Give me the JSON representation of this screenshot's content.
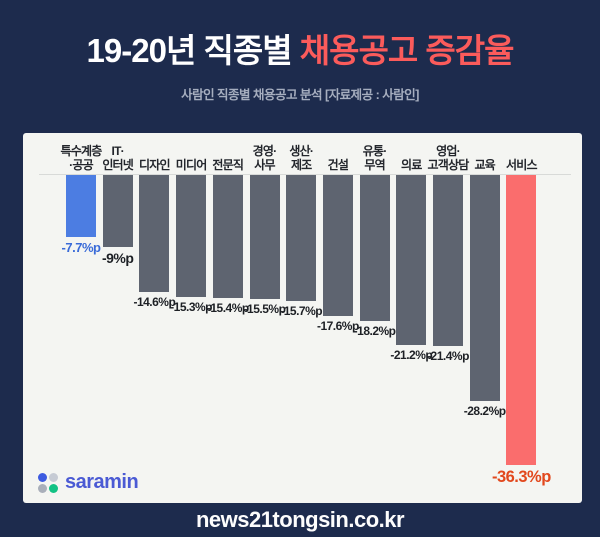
{
  "header": {
    "title_white": "19-20년 직종별",
    "title_red": "채용공고 증감율",
    "subtitle": "사람인 직종별 채용공고 분석 [자료제공 : 사람인]"
  },
  "chart_data": {
    "type": "bar",
    "title": "19-20년 직종별 채용공고 증감율",
    "unit": "%p",
    "ylim": [
      -40,
      0
    ],
    "grid": false,
    "legend": false,
    "categories": [
      "특수계층·공공",
      "IT·인터넷",
      "디자인",
      "미디어",
      "전문직",
      "경영·사무",
      "생산·제조",
      "건설",
      "유통·무역",
      "의료",
      "영업·고객상담",
      "교육",
      "서비스"
    ],
    "category_lines": [
      [
        "특수계층",
        "·공공"
      ],
      [
        "IT·",
        "인터넷"
      ],
      [
        "디자인"
      ],
      [
        "미디어"
      ],
      [
        "전문직"
      ],
      [
        "경영·",
        "사무"
      ],
      [
        "생산·",
        "제조"
      ],
      [
        "건설"
      ],
      [
        "유통·",
        "무역"
      ],
      [
        "의료"
      ],
      [
        "영업·",
        "고객상담"
      ],
      [
        "교육"
      ],
      [
        "서비스"
      ]
    ],
    "values": [
      -7.7,
      -9,
      -14.6,
      -15.3,
      -15.4,
      -15.5,
      -15.7,
      -17.6,
      -18.2,
      -21.2,
      -21.4,
      -28.2,
      -36.3
    ],
    "value_labels": [
      "-7.7%p",
      "-9%p",
      "-14.6%p",
      "-15.3%p",
      "-15.4%p",
      "-15.5%p",
      "-15.7%p",
      "-17.6%p",
      "-18.2%p",
      "-21.2%p",
      "-21.4%p",
      "-28.2%p",
      "-36.3%p"
    ],
    "bar_colors": [
      "#4c7de2",
      "#5e6470",
      "#5e6470",
      "#5e6470",
      "#5e6470",
      "#5e6470",
      "#5e6470",
      "#5e6470",
      "#5e6470",
      "#5e6470",
      "#5e6470",
      "#5e6470",
      "#fa6d6d"
    ],
    "value_label_colors": [
      "#3a6bd8",
      "#1d2025",
      "#1d2025",
      "#1d2025",
      "#1d2025",
      "#1d2025",
      "#1d2025",
      "#1d2025",
      "#1d2025",
      "#1d2025",
      "#1d2025",
      "#1d2025",
      "#e2481d"
    ]
  },
  "colors": {
    "background": "#1d2b4d",
    "card": "#f4f5f2",
    "title_accent": "#fb5b5b",
    "bar_default": "#5e6470",
    "bar_first": "#4c7de2",
    "bar_last": "#fa6d6d"
  },
  "logo": {
    "text": "saramin",
    "text_color": "#4a5ad4",
    "dot_colors": [
      "#3d5be0",
      "#c6cbd4",
      "#a9afba",
      "#12c284"
    ]
  },
  "footer": {
    "text": "news21tongsin.co.kr"
  }
}
